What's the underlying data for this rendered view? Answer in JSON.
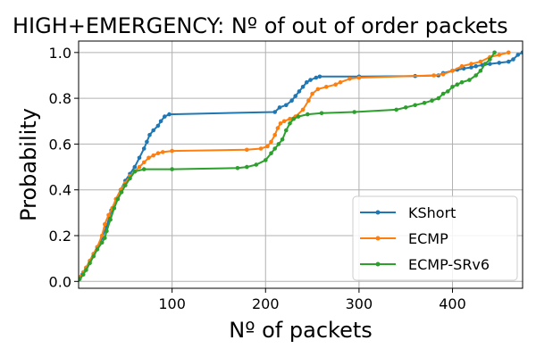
{
  "chart_data": {
    "type": "line",
    "title": "HIGH+EMERGENCY: Nº of out of order packets",
    "xlabel": "Nº of packets",
    "ylabel": "Probability",
    "xlim": [
      0,
      475
    ],
    "ylim": [
      -0.03,
      1.05
    ],
    "x_ticks": [
      100,
      200,
      300,
      400
    ],
    "y_ticks": [
      0.0,
      0.2,
      0.4,
      0.6,
      0.8,
      1.0
    ],
    "x_tick_labels": [
      "100",
      "200",
      "300",
      "400"
    ],
    "y_tick_labels": [
      "0.0",
      "0.2",
      "0.4",
      "0.6",
      "0.8",
      "1.0"
    ],
    "grid": true,
    "legend_position": "lower-right",
    "series": [
      {
        "name": "KShort",
        "color": "#1f77b4",
        "points": [
          [
            1,
            0.01
          ],
          [
            4,
            0.03
          ],
          [
            8,
            0.06
          ],
          [
            12,
            0.09
          ],
          [
            16,
            0.12
          ],
          [
            20,
            0.15
          ],
          [
            25,
            0.19
          ],
          [
            30,
            0.24
          ],
          [
            35,
            0.31
          ],
          [
            40,
            0.36
          ],
          [
            45,
            0.4
          ],
          [
            50,
            0.44
          ],
          [
            55,
            0.47
          ],
          [
            60,
            0.5
          ],
          [
            65,
            0.54
          ],
          [
            70,
            0.58
          ],
          [
            73,
            0.61
          ],
          [
            76,
            0.64
          ],
          [
            80,
            0.66
          ],
          [
            85,
            0.68
          ],
          [
            88,
            0.7
          ],
          [
            92,
            0.72
          ],
          [
            97,
            0.73
          ],
          [
            210,
            0.74
          ],
          [
            215,
            0.76
          ],
          [
            222,
            0.77
          ],
          [
            228,
            0.79
          ],
          [
            232,
            0.81
          ],
          [
            236,
            0.83
          ],
          [
            240,
            0.85
          ],
          [
            244,
            0.87
          ],
          [
            248,
            0.88
          ],
          [
            254,
            0.89
          ],
          [
            258,
            0.895
          ],
          [
            300,
            0.895
          ],
          [
            360,
            0.897
          ],
          [
            385,
            0.9
          ],
          [
            390,
            0.91
          ],
          [
            400,
            0.92
          ],
          [
            405,
            0.925
          ],
          [
            412,
            0.93
          ],
          [
            420,
            0.935
          ],
          [
            425,
            0.94
          ],
          [
            432,
            0.945
          ],
          [
            440,
            0.95
          ],
          [
            450,
            0.955
          ],
          [
            460,
            0.96
          ],
          [
            465,
            0.97
          ],
          [
            470,
            0.99
          ],
          [
            475,
            1.0
          ]
        ]
      },
      {
        "name": "ECMP",
        "color": "#ff7f0e",
        "points": [
          [
            2,
            0.02
          ],
          [
            5,
            0.04
          ],
          [
            8,
            0.06
          ],
          [
            12,
            0.09
          ],
          [
            16,
            0.12
          ],
          [
            20,
            0.15
          ],
          [
            25,
            0.2
          ],
          [
            28,
            0.25
          ],
          [
            32,
            0.29
          ],
          [
            36,
            0.32
          ],
          [
            40,
            0.36
          ],
          [
            45,
            0.4
          ],
          [
            50,
            0.43
          ],
          [
            55,
            0.46
          ],
          [
            60,
            0.48
          ],
          [
            65,
            0.5
          ],
          [
            70,
            0.52
          ],
          [
            75,
            0.54
          ],
          [
            80,
            0.55
          ],
          [
            85,
            0.56
          ],
          [
            90,
            0.565
          ],
          [
            100,
            0.57
          ],
          [
            180,
            0.575
          ],
          [
            195,
            0.58
          ],
          [
            202,
            0.59
          ],
          [
            206,
            0.61
          ],
          [
            210,
            0.64
          ],
          [
            213,
            0.67
          ],
          [
            216,
            0.69
          ],
          [
            220,
            0.7
          ],
          [
            226,
            0.71
          ],
          [
            232,
            0.72
          ],
          [
            240,
            0.75
          ],
          [
            246,
            0.79
          ],
          [
            250,
            0.82
          ],
          [
            256,
            0.84
          ],
          [
            265,
            0.85
          ],
          [
            275,
            0.86
          ],
          [
            280,
            0.87
          ],
          [
            290,
            0.885
          ],
          [
            300,
            0.89
          ],
          [
            380,
            0.9
          ],
          [
            390,
            0.905
          ],
          [
            400,
            0.92
          ],
          [
            410,
            0.94
          ],
          [
            420,
            0.95
          ],
          [
            430,
            0.96
          ],
          [
            440,
            0.98
          ],
          [
            450,
            0.99
          ],
          [
            460,
            1.0
          ]
        ]
      },
      {
        "name": "ECMP-SRv6",
        "color": "#2ca02c",
        "points": [
          [
            1,
            0.01
          ],
          [
            5,
            0.03
          ],
          [
            8,
            0.05
          ],
          [
            12,
            0.08
          ],
          [
            16,
            0.11
          ],
          [
            20,
            0.14
          ],
          [
            25,
            0.17
          ],
          [
            28,
            0.19
          ],
          [
            30,
            0.22
          ],
          [
            34,
            0.27
          ],
          [
            38,
            0.32
          ],
          [
            42,
            0.36
          ],
          [
            46,
            0.39
          ],
          [
            50,
            0.42
          ],
          [
            55,
            0.45
          ],
          [
            60,
            0.48
          ],
          [
            70,
            0.49
          ],
          [
            100,
            0.49
          ],
          [
            170,
            0.495
          ],
          [
            180,
            0.5
          ],
          [
            190,
            0.51
          ],
          [
            200,
            0.53
          ],
          [
            206,
            0.56
          ],
          [
            210,
            0.58
          ],
          [
            214,
            0.6
          ],
          [
            218,
            0.62
          ],
          [
            222,
            0.66
          ],
          [
            226,
            0.69
          ],
          [
            230,
            0.71
          ],
          [
            235,
            0.72
          ],
          [
            245,
            0.73
          ],
          [
            260,
            0.735
          ],
          [
            295,
            0.74
          ],
          [
            340,
            0.75
          ],
          [
            350,
            0.76
          ],
          [
            360,
            0.77
          ],
          [
            370,
            0.78
          ],
          [
            378,
            0.79
          ],
          [
            385,
            0.8
          ],
          [
            390,
            0.82
          ],
          [
            395,
            0.83
          ],
          [
            400,
            0.85
          ],
          [
            405,
            0.86
          ],
          [
            410,
            0.87
          ],
          [
            418,
            0.88
          ],
          [
            425,
            0.9
          ],
          [
            430,
            0.92
          ],
          [
            435,
            0.95
          ],
          [
            440,
            0.97
          ],
          [
            445,
            1.0
          ]
        ]
      }
    ]
  }
}
